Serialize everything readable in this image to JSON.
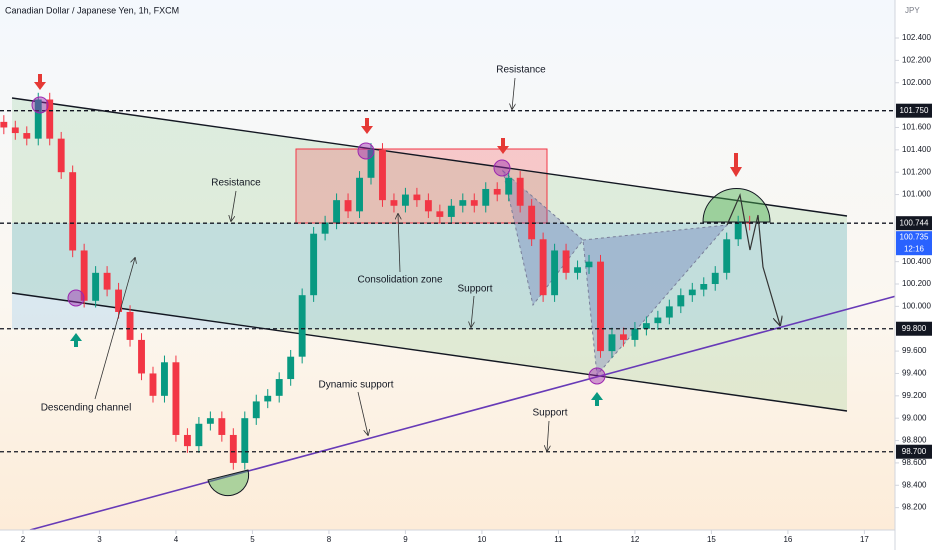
{
  "chart_data": {
    "type": "candlestick",
    "title": "Canadian Dollar / Japanese Yen, 1h, FXCM",
    "currency": "JPY",
    "up_color": "#089981",
    "down_color": "#f23645",
    "x": [
      -0.25,
      -0.1,
      0.05,
      0.2,
      0.35,
      0.5,
      0.65,
      0.8,
      0.95,
      1.1,
      1.25,
      1.4,
      1.55,
      1.7,
      1.85,
      2.0,
      2.15,
      2.3,
      2.45,
      2.6,
      2.75,
      2.9,
      3.05,
      3.2,
      3.35,
      3.5,
      3.65,
      3.8,
      3.95,
      4.1,
      4.25,
      4.4,
      4.55,
      4.7,
      4.85,
      5.0,
      5.15,
      5.3,
      5.45,
      5.6,
      5.75,
      5.9,
      6.05,
      6.2,
      6.35,
      6.5,
      6.65,
      6.8,
      6.95,
      7.1,
      7.25,
      7.4,
      7.55,
      7.7,
      7.85,
      8.0,
      8.15,
      8.3,
      8.45,
      8.6,
      8.75,
      8.9,
      9.05,
      9.2,
      9.35,
      9.5
    ],
    "open": [
      101.65,
      101.6,
      101.55,
      101.5,
      101.85,
      101.5,
      101.2,
      100.5,
      100.05,
      100.3,
      100.15,
      99.95,
      99.7,
      99.4,
      99.2,
      99.5,
      98.85,
      98.75,
      98.95,
      99.0,
      98.85,
      98.6,
      99.0,
      99.15,
      99.2,
      99.35,
      99.55,
      100.1,
      100.65,
      100.75,
      100.95,
      100.85,
      101.15,
      101.4,
      100.95,
      100.9,
      101.0,
      100.95,
      100.85,
      100.8,
      100.9,
      100.95,
      100.9,
      101.05,
      101.0,
      101.15,
      100.9,
      100.6,
      100.1,
      100.5,
      100.3,
      100.35,
      100.4,
      99.6,
      99.75,
      99.7,
      99.8,
      99.85,
      99.9,
      100.0,
      100.1,
      100.15,
      100.2,
      100.3,
      100.6,
      100.75
    ],
    "high": [
      101.71,
      101.66,
      101.61,
      101.91,
      101.91,
      101.56,
      101.26,
      100.56,
      100.36,
      100.36,
      100.21,
      100.01,
      99.76,
      99.46,
      99.56,
      99.56,
      98.91,
      99.01,
      99.06,
      99.06,
      98.91,
      99.06,
      99.21,
      99.26,
      99.41,
      99.61,
      100.16,
      100.71,
      100.81,
      101.01,
      101.01,
      101.21,
      101.46,
      101.46,
      101.01,
      101.06,
      101.06,
      101.01,
      100.91,
      100.96,
      101.01,
      101.01,
      101.11,
      101.11,
      101.21,
      101.21,
      100.96,
      100.66,
      100.56,
      100.56,
      100.41,
      100.46,
      100.46,
      99.81,
      99.81,
      99.86,
      99.91,
      99.96,
      100.06,
      100.16,
      100.21,
      100.26,
      100.36,
      100.66,
      100.81,
      100.81
    ],
    "low": [
      101.54,
      101.49,
      101.44,
      101.44,
      101.44,
      101.14,
      100.44,
      99.99,
      99.99,
      100.09,
      99.89,
      99.64,
      99.34,
      99.14,
      99.14,
      98.79,
      98.69,
      98.69,
      98.89,
      98.79,
      98.54,
      98.54,
      98.94,
      99.09,
      99.14,
      99.29,
      99.49,
      100.04,
      100.59,
      100.69,
      100.79,
      100.79,
      101.09,
      100.89,
      100.84,
      100.84,
      100.89,
      100.79,
      100.74,
      100.74,
      100.84,
      100.84,
      100.84,
      100.94,
      100.94,
      100.84,
      100.54,
      100.04,
      100.04,
      100.24,
      100.24,
      100.29,
      99.54,
      99.54,
      99.64,
      99.64,
      99.74,
      99.79,
      99.84,
      99.94,
      100.04,
      100.09,
      100.14,
      100.24,
      100.54,
      100.68
    ],
    "close": [
      101.6,
      101.55,
      101.5,
      101.85,
      101.5,
      101.2,
      100.5,
      100.05,
      100.3,
      100.15,
      99.95,
      99.7,
      99.4,
      99.2,
      99.5,
      98.85,
      98.75,
      98.95,
      99.0,
      98.85,
      98.6,
      99.0,
      99.15,
      99.2,
      99.35,
      99.55,
      100.1,
      100.65,
      100.75,
      100.95,
      100.85,
      101.15,
      101.4,
      100.95,
      100.9,
      101.0,
      100.95,
      100.85,
      100.8,
      100.9,
      100.95,
      100.9,
      101.05,
      101.0,
      101.15,
      100.9,
      100.6,
      100.1,
      100.5,
      100.3,
      100.35,
      100.4,
      99.6,
      99.75,
      99.7,
      99.8,
      99.85,
      99.9,
      100.0,
      100.1,
      100.15,
      100.2,
      100.3,
      100.6,
      100.75,
      100.74
    ],
    "xlim": [
      -0.3,
      11.4
    ],
    "ylim": [
      98.0,
      102.74
    ],
    "xticks": [
      {
        "value": 0,
        "label": "2"
      },
      {
        "value": 1,
        "label": "3"
      },
      {
        "value": 2,
        "label": "4"
      },
      {
        "value": 3,
        "label": "5"
      },
      {
        "value": 4,
        "label": "8"
      },
      {
        "value": 5,
        "label": "9"
      },
      {
        "value": 6,
        "label": "10"
      },
      {
        "value": 7,
        "label": "11"
      },
      {
        "value": 8,
        "label": "12"
      },
      {
        "value": 9,
        "label": "15"
      },
      {
        "value": 10,
        "label": "16"
      },
      {
        "value": 11,
        "label": "17"
      }
    ],
    "yticks": [
      {
        "value": 102.4,
        "label": "102.400"
      },
      {
        "value": 102.2,
        "label": "102.200"
      },
      {
        "value": 102.0,
        "label": "102.000"
      },
      {
        "value": 101.6,
        "label": "101.600"
      },
      {
        "value": 101.4,
        "label": "101.400"
      },
      {
        "value": 101.2,
        "label": "101.200"
      },
      {
        "value": 101.0,
        "label": "101.000"
      },
      {
        "value": 100.4,
        "label": "100.400"
      },
      {
        "value": 100.2,
        "label": "100.200"
      },
      {
        "value": 100.0,
        "label": "100.000"
      },
      {
        "value": 99.6,
        "label": "99.600"
      },
      {
        "value": 99.4,
        "label": "99.400"
      },
      {
        "value": 99.2,
        "label": "99.200"
      },
      {
        "value": 99.0,
        "label": "99.000"
      },
      {
        "value": 98.8,
        "label": "98.800"
      },
      {
        "value": 98.6,
        "label": "98.600"
      },
      {
        "value": 98.4,
        "label": "98.400"
      },
      {
        "value": 98.2,
        "label": "98.200"
      }
    ],
    "levels": [
      {
        "value": 101.75,
        "label": "101.750"
      },
      {
        "value": 100.744,
        "label": "100.744"
      },
      {
        "value": 99.8,
        "label": "99.800"
      },
      {
        "value": 98.7,
        "label": "98.700"
      }
    ],
    "last_price": {
      "value": 100.735,
      "label": "100.735"
    },
    "countdown": "12:16",
    "annotations": [
      "Resistance",
      "Resistance",
      "Consolidation zone",
      "Support",
      "Descending channel",
      "Dynamic support",
      "Support"
    ]
  }
}
